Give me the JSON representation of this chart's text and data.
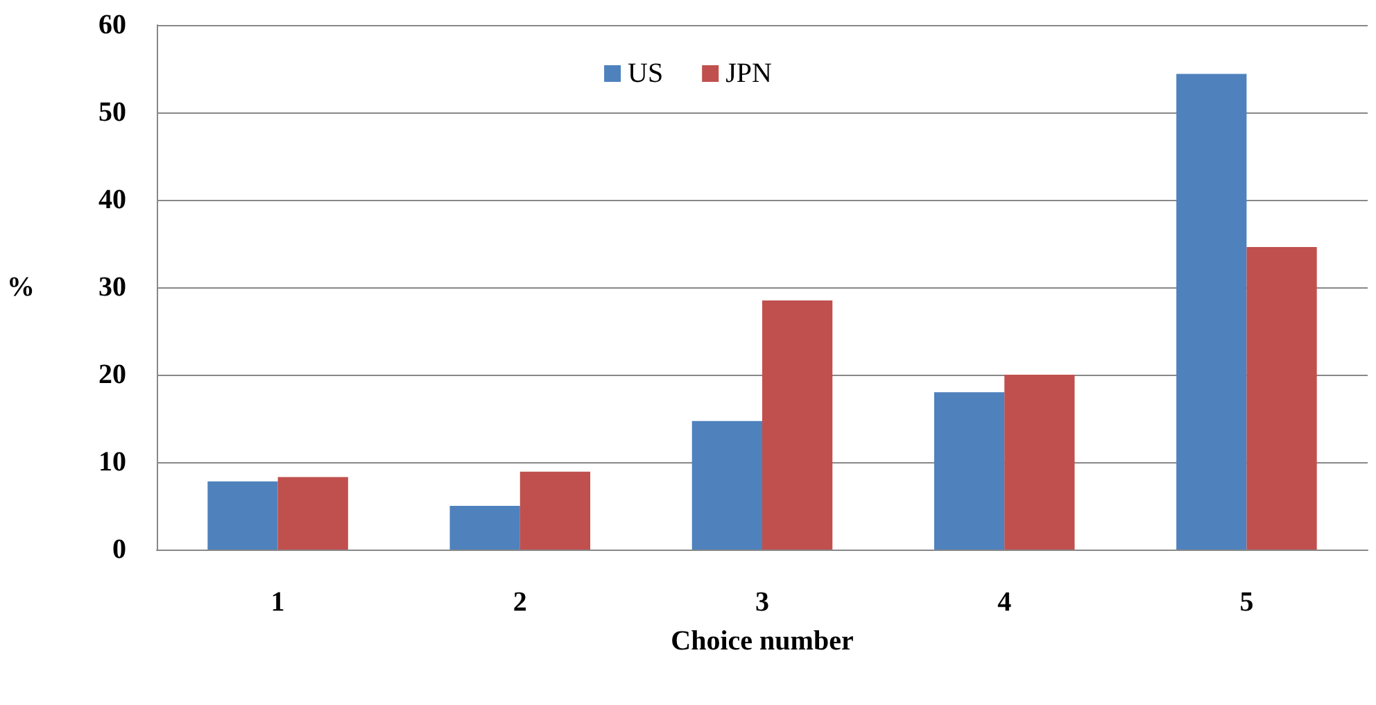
{
  "chart_data": {
    "type": "bar",
    "xlabel": "Choice number",
    "ylabel": "%",
    "categories": [
      "1",
      "2",
      "3",
      "4",
      "5"
    ],
    "series": [
      {
        "name": "US",
        "color": "#4f81bd",
        "values": [
          7.8,
          5.0,
          14.7,
          18.0,
          54.4
        ]
      },
      {
        "name": "JPN",
        "color": "#c0504d",
        "values": [
          8.3,
          8.9,
          28.5,
          20.0,
          34.6
        ]
      }
    ],
    "ylim": [
      0,
      60
    ],
    "yticks": [
      0,
      10,
      20,
      30,
      40,
      50,
      60
    ],
    "grid": "y",
    "legend": "top"
  }
}
